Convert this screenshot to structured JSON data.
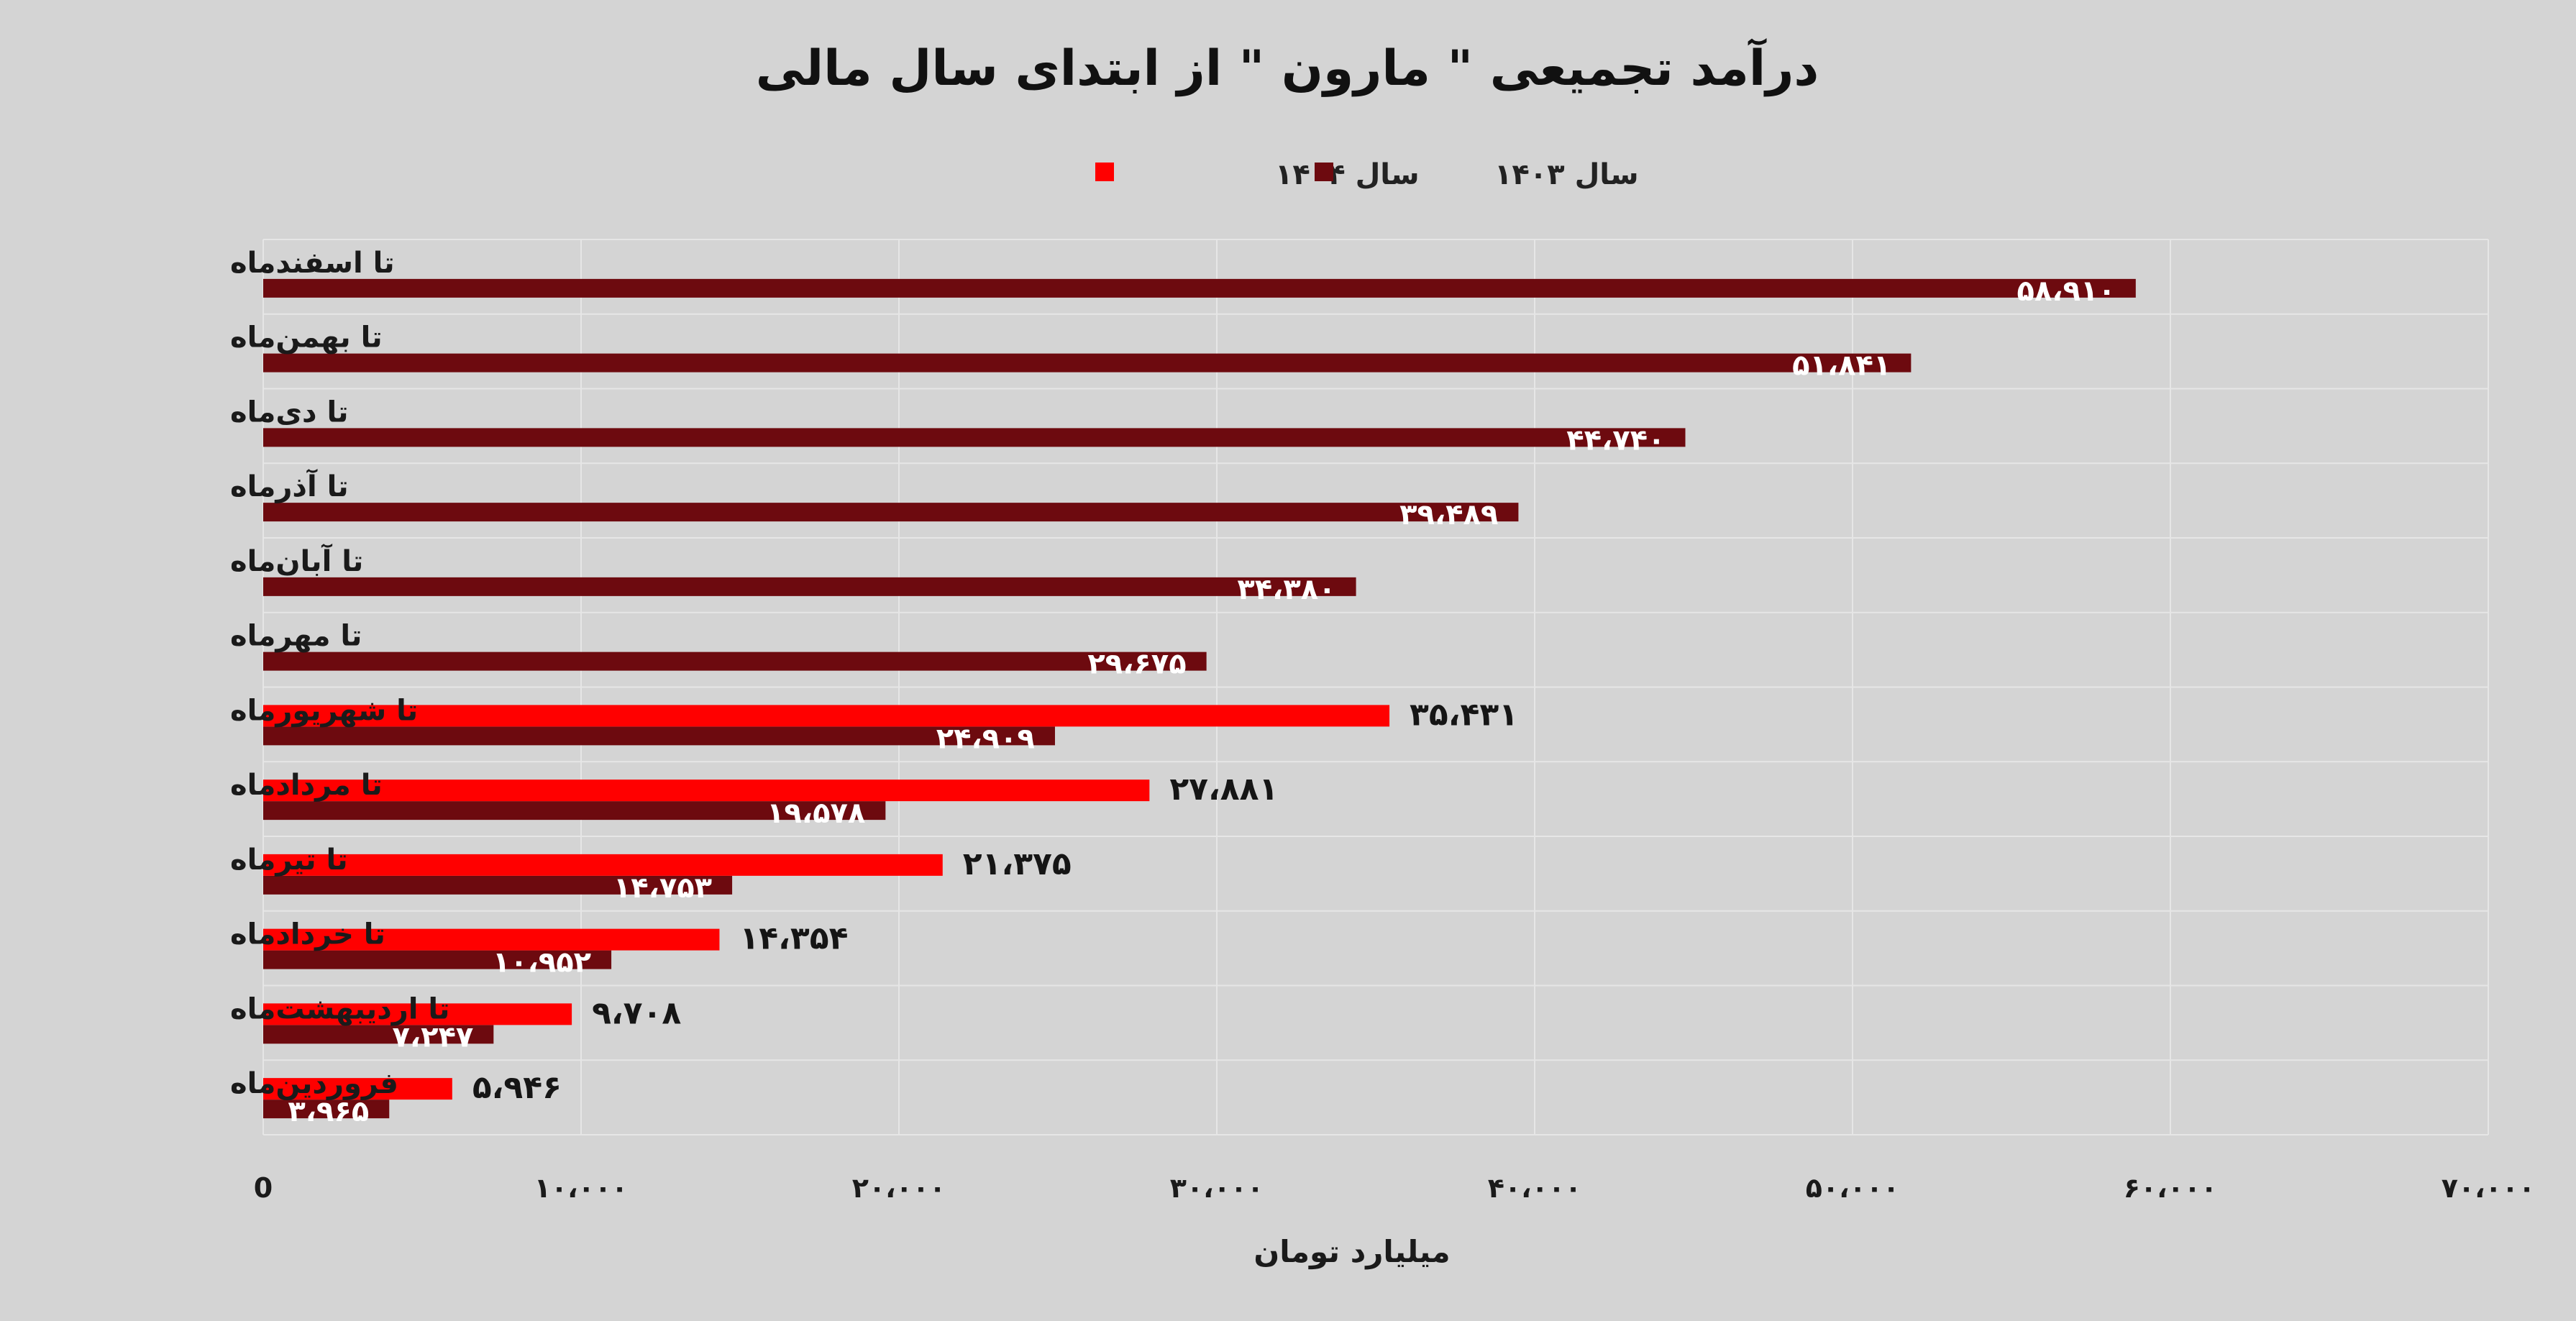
{
  "chart_data": {
    "type": "bar",
    "orientation": "horizontal",
    "title": "درآمد تجمیعی \" مارون \" از ابتدای سال مالی",
    "xlabel": "میلیارد تومان",
    "ylabel": "",
    "xlim": [
      0,
      70000
    ],
    "grid": true,
    "legend_position": "top",
    "x_ticks": [
      {
        "value": 0,
        "label": "0"
      },
      {
        "value": 10000,
        "label": "۱۰،۰۰۰"
      },
      {
        "value": 20000,
        "label": "۲۰،۰۰۰"
      },
      {
        "value": 30000,
        "label": "۳۰،۰۰۰"
      },
      {
        "value": 40000,
        "label": "۴۰،۰۰۰"
      },
      {
        "value": 50000,
        "label": "۵۰،۰۰۰"
      },
      {
        "value": 60000,
        "label": "۶۰،۰۰۰"
      },
      {
        "value": 70000,
        "label": "۷۰،۰۰۰"
      }
    ],
    "categories": [
      "تا اسفندماه",
      "تا بهمن‌ماه",
      "تا دی‌ماه",
      "تا آذرماه",
      "تا آبان‌ماه",
      "تا مهرماه",
      "تا شهریورماه",
      "تا مردادماه",
      "تا تیرماه",
      "تا خردادماه",
      "تا اردیبهشت‌ماه",
      "فروردین‌ماه"
    ],
    "series": [
      {
        "name": "سال ۱۴۰۴",
        "color": "#ff0000",
        "values": [
          null,
          null,
          null,
          null,
          null,
          null,
          35431,
          27881,
          21375,
          14354,
          9708,
          5946
        ],
        "labels": [
          "",
          "",
          "",
          "",
          "",
          "",
          "۳۵،۴۳۱",
          "۲۷،۸۸۱",
          "۲۱،۳۷۵",
          "۱۴،۳۵۴",
          "۹،۷۰۸",
          "۵،۹۴۶"
        ]
      },
      {
        "name": "سال ۱۴۰۳",
        "color": "#6d0a0f",
        "values": [
          58910,
          51841,
          44740,
          39489,
          34380,
          29675,
          24909,
          19578,
          14753,
          10952,
          7247,
          3965
        ],
        "labels": [
          "۵۸،۹۱۰",
          "۵۱،۸۴۱",
          "۴۴،۷۴۰",
          "۳۹،۴۸۹",
          "۳۴،۳۸۰",
          "۲۹،۶۷۵",
          "۲۴،۹۰۹",
          "۱۹،۵۷۸",
          "۱۴،۷۵۳",
          "۱۰،۹۵۲",
          "۷،۲۴۷",
          "۳،۹۶۵"
        ]
      }
    ]
  }
}
